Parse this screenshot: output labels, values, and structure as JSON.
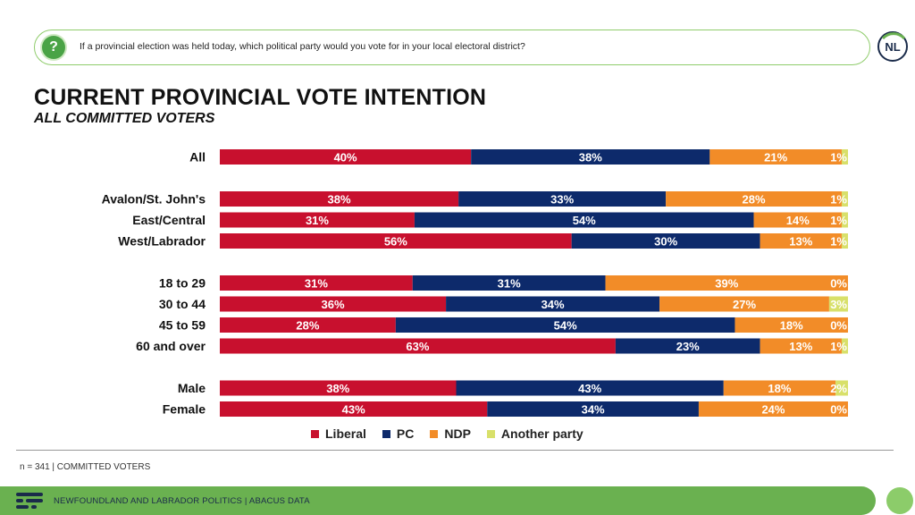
{
  "question": "If a provincial election was held today, which political party would you vote for in your local electoral district?",
  "logo_text": "NL",
  "title": "CURRENT PROVINCIAL VOTE INTENTION",
  "subtitle": "ALL COMMITTED VOTERS",
  "note": "n = 341 | COMMITTED VOTERS",
  "footer": "NEWFOUNDLAND AND LABRADOR POLITICS  |  ABACUS DATA",
  "colors": {
    "liberal": "#c8102e",
    "pc": "#0d2a6b",
    "ndp": "#f28c28",
    "other": "#d8e06a",
    "brand": "#6ab150"
  },
  "chart_data": {
    "type": "bar",
    "orientation": "horizontal",
    "stacked": true,
    "xlim": [
      0,
      100
    ],
    "legend_placement": "bottom",
    "series": [
      {
        "name": "Liberal",
        "color": "#c8102e"
      },
      {
        "name": "PC",
        "color": "#0d2a6b"
      },
      {
        "name": "NDP",
        "color": "#f28c28"
      },
      {
        "name": "Another party",
        "color": "#d8e06a"
      }
    ],
    "rows": [
      {
        "label": "All",
        "group": 0,
        "values": [
          40,
          38,
          21,
          1
        ],
        "labels": [
          "40%",
          "38%",
          "21%",
          "1%"
        ]
      },
      {
        "label": "Avalon/St. John's",
        "group": 1,
        "values": [
          38,
          33,
          28,
          1
        ],
        "labels": [
          "38%",
          "33%",
          "28%",
          "1%"
        ]
      },
      {
        "label": "East/Central",
        "group": 1,
        "values": [
          31,
          54,
          14,
          1
        ],
        "labels": [
          "31%",
          "54%",
          "14%",
          "1%"
        ]
      },
      {
        "label": "West/Labrador",
        "group": 1,
        "values": [
          56,
          30,
          13,
          1
        ],
        "labels": [
          "56%",
          "30%",
          "13%",
          "1%"
        ]
      },
      {
        "label": "18 to 29",
        "group": 2,
        "values": [
          31,
          31,
          39,
          0
        ],
        "labels": [
          "31%",
          "31%",
          "39%",
          "0%"
        ]
      },
      {
        "label": "30 to 44",
        "group": 2,
        "values": [
          36,
          34,
          27,
          3
        ],
        "labels": [
          "36%",
          "34%",
          "27%",
          "3%"
        ]
      },
      {
        "label": "45 to 59",
        "group": 2,
        "values": [
          28,
          54,
          18,
          0
        ],
        "labels": [
          "28%",
          "54%",
          "18%",
          "0%"
        ]
      },
      {
        "label": "60 and over",
        "group": 2,
        "values": [
          63,
          23,
          13,
          1
        ],
        "labels": [
          "63%",
          "23%",
          "13%",
          "1%"
        ]
      },
      {
        "label": "Male",
        "group": 3,
        "values": [
          38,
          43,
          18,
          2
        ],
        "labels": [
          "38%",
          "43%",
          "18%",
          "2%"
        ]
      },
      {
        "label": "Female",
        "group": 3,
        "values": [
          43,
          34,
          24,
          0
        ],
        "labels": [
          "43%",
          "34%",
          "24%",
          "0%"
        ]
      }
    ]
  }
}
